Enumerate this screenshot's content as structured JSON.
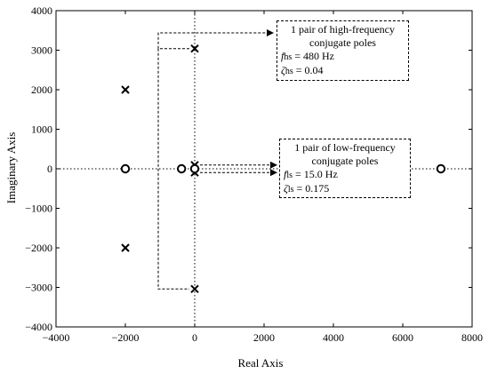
{
  "chart_data": {
    "type": "scatter",
    "xlabel": "Real Axis",
    "ylabel": "Imaginary Axis",
    "xlim": [
      -4000,
      8000
    ],
    "ylim": [
      -4000,
      4000
    ],
    "xticks": [
      -4000,
      -2000,
      0,
      2000,
      4000,
      6000,
      8000
    ],
    "yticks": [
      -4000,
      -3000,
      -2000,
      -1000,
      0,
      1000,
      2000,
      3000,
      4000
    ],
    "xtick_labels": [
      "−4000",
      "−2000",
      "0",
      "2000",
      "4000",
      "6000",
      "8000"
    ],
    "ytick_labels": [
      "−4000",
      "−3000",
      "−2000",
      "−1000",
      "0",
      "1000",
      "2000",
      "3000",
      "4000"
    ],
    "grid": false,
    "poles": [
      {
        "x": -2000,
        "y": 2000
      },
      {
        "x": -2000,
        "y": -2000
      },
      {
        "x": 0,
        "y": 3040
      },
      {
        "x": 0,
        "y": -3040
      },
      {
        "x": 0,
        "y": 95
      },
      {
        "x": 0,
        "y": -95
      }
    ],
    "zeros": [
      {
        "x": -2000,
        "y": 0
      },
      {
        "x": -380,
        "y": 0
      },
      {
        "x": 0,
        "y": 0
      },
      {
        "x": 7100,
        "y": 0
      }
    ],
    "annotations": [
      {
        "id": "high",
        "lines": [
          "1 pair of high-frequency",
          "conjugate poles"
        ],
        "param1": {
          "symbol": "f",
          "sub": "hs",
          "value": "= 480 Hz"
        },
        "param2": {
          "symbol": "ζ",
          "sub": "hs",
          "value": "= 0.04"
        }
      },
      {
        "id": "low",
        "lines": [
          "1 pair of low-frequency",
          "conjugate poles"
        ],
        "param1": {
          "symbol": "f",
          "sub": "ls",
          "value": "= 15.0 Hz"
        },
        "param2": {
          "symbol": "ζ",
          "sub": "ls",
          "value": "= 0.175"
        }
      }
    ]
  }
}
